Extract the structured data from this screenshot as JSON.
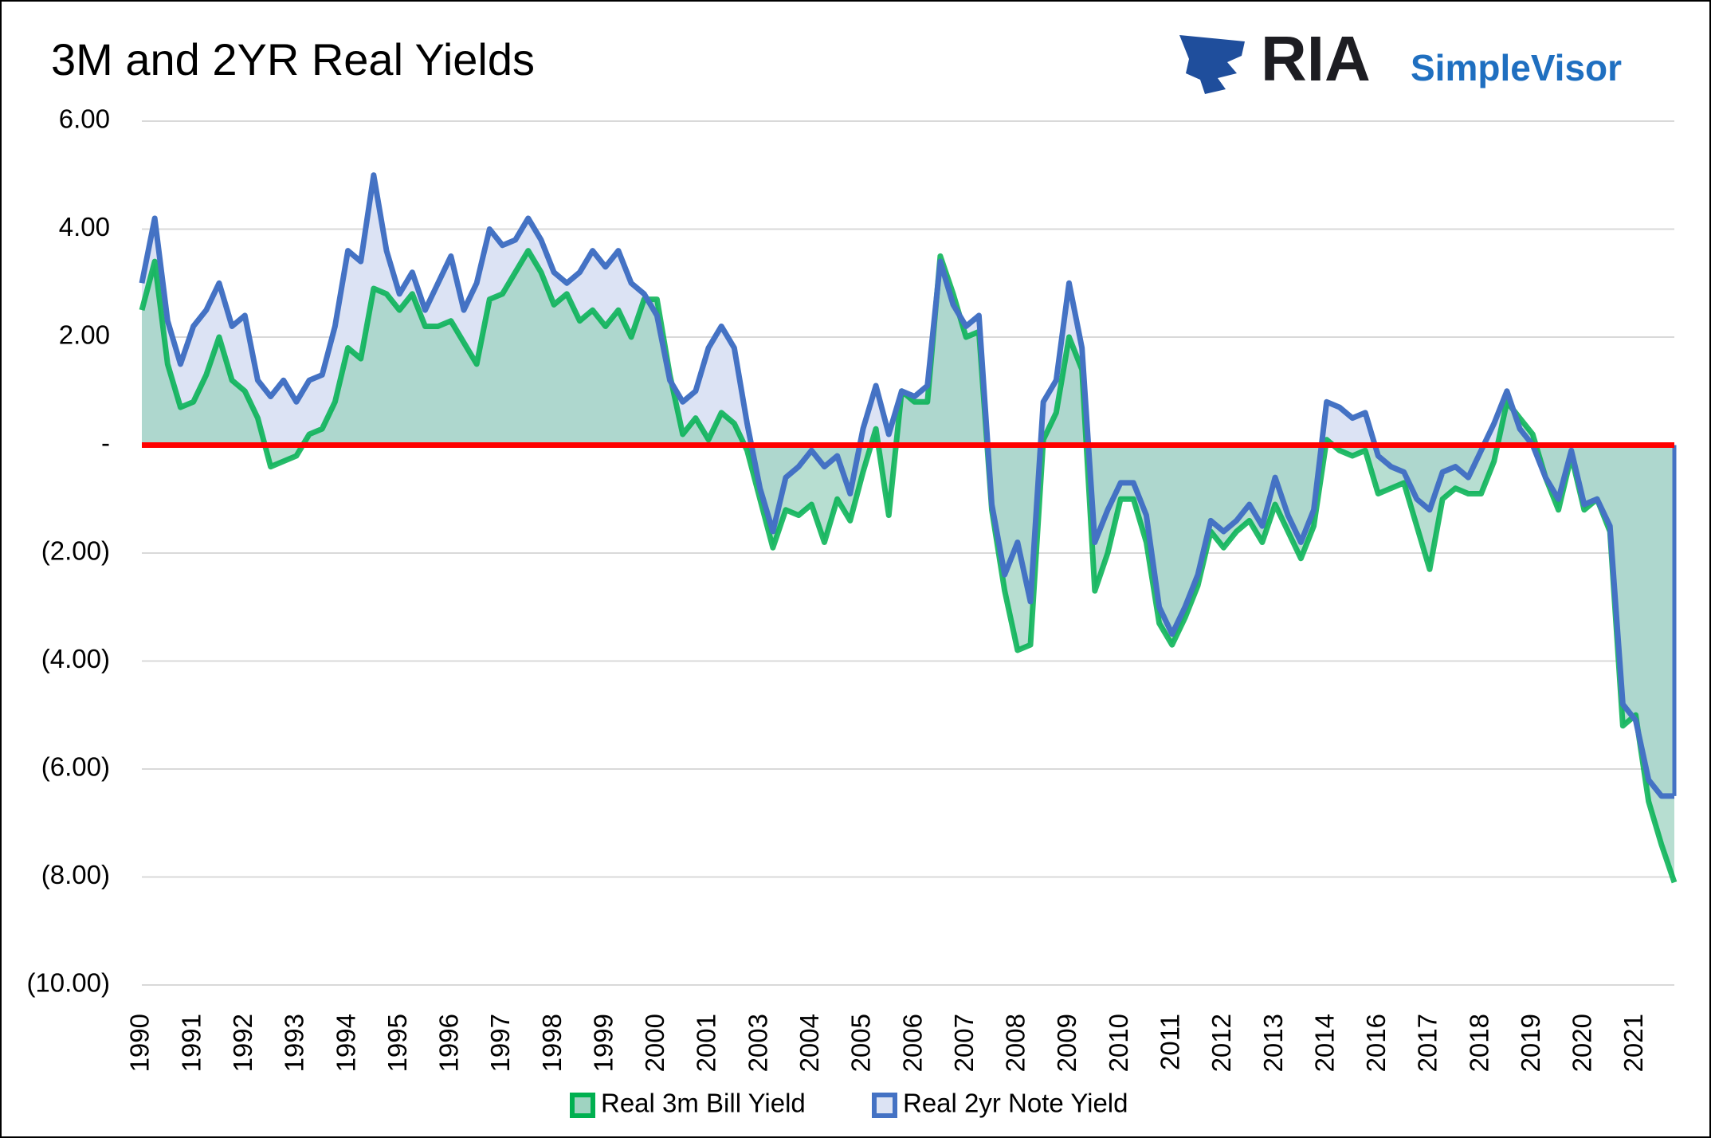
{
  "logo": {
    "brand": "RIA",
    "product": "SimpleVisor"
  },
  "chart_data": {
    "type": "area",
    "title": "3M and 2YR Real Yields",
    "categories": [
      "1990",
      null,
      null,
      null,
      "1991",
      null,
      null,
      null,
      "1992",
      null,
      null,
      null,
      "1993",
      null,
      null,
      null,
      "1994",
      null,
      null,
      null,
      "1995",
      null,
      null,
      null,
      "1996",
      null,
      null,
      null,
      "1997",
      null,
      null,
      null,
      "1998",
      null,
      null,
      null,
      "1999",
      null,
      null,
      null,
      "2000",
      null,
      null,
      null,
      "2001",
      null,
      null,
      null,
      "2003",
      null,
      null,
      null,
      "2004",
      null,
      null,
      null,
      "2005",
      null,
      null,
      null,
      "2006",
      null,
      null,
      null,
      "2007",
      null,
      null,
      null,
      "2008",
      null,
      null,
      null,
      "2009",
      null,
      null,
      null,
      "2010",
      null,
      null,
      null,
      "2011",
      null,
      null,
      null,
      "2012",
      null,
      null,
      null,
      "2013",
      null,
      null,
      null,
      "2014",
      null,
      null,
      null,
      "2016",
      null,
      null,
      null,
      "2017",
      null,
      null,
      null,
      "2018",
      null,
      null,
      null,
      "2019",
      null,
      null,
      null,
      "2020",
      null,
      null,
      null,
      "2021",
      null,
      null,
      null
    ],
    "series": [
      {
        "name": "Real 3m Bill Yield",
        "color": "#00b050",
        "fill": "#9fd3c1",
        "values": [
          2.5,
          3.4,
          1.5,
          0.7,
          0.8,
          1.3,
          2.0,
          1.2,
          1.0,
          0.5,
          -0.4,
          -0.3,
          -0.2,
          0.2,
          0.3,
          0.8,
          1.8,
          1.6,
          2.9,
          2.8,
          2.5,
          2.8,
          2.2,
          2.2,
          2.3,
          1.9,
          1.5,
          2.7,
          2.8,
          3.2,
          3.6,
          3.2,
          2.6,
          2.8,
          2.3,
          2.5,
          2.2,
          2.5,
          2.0,
          2.7,
          2.7,
          1.3,
          0.2,
          0.5,
          0.1,
          0.6,
          0.4,
          -0.1,
          -1.0,
          -1.9,
          -1.2,
          -1.3,
          -1.1,
          -1.8,
          -1.0,
          -1.4,
          -0.5,
          0.3,
          -1.3,
          1.0,
          0.8,
          0.8,
          3.5,
          2.8,
          2.0,
          2.1,
          -1.2,
          -2.7,
          -3.8,
          -3.7,
          0.1,
          0.6,
          2.0,
          1.4,
          -2.7,
          -2.0,
          -1.0,
          -1.0,
          -1.8,
          -3.3,
          -3.7,
          -3.2,
          -2.6,
          -1.6,
          -1.9,
          -1.6,
          -1.4,
          -1.8,
          -1.1,
          -1.6,
          -2.1,
          -1.5,
          0.1,
          -0.1,
          -0.2,
          -0.1,
          -0.9,
          -0.8,
          -0.7,
          -1.5,
          -2.3,
          -1.0,
          -0.8,
          -0.9,
          -0.9,
          -0.3,
          0.8,
          0.5,
          0.2,
          -0.6,
          -1.2,
          -0.2,
          -1.2,
          -1.0,
          -1.6,
          -5.2,
          -5.0,
          -6.6,
          -7.4,
          -8.1
        ]
      },
      {
        "name": "Real 2yr Note Yield",
        "color": "#4472c4",
        "fill": "#dce3f4",
        "values": [
          3.0,
          4.2,
          2.3,
          1.5,
          2.2,
          2.5,
          3.0,
          2.2,
          2.4,
          1.2,
          0.9,
          1.2,
          0.8,
          1.2,
          1.3,
          2.2,
          3.6,
          3.4,
          5.0,
          3.6,
          2.8,
          3.2,
          2.5,
          3.0,
          3.5,
          2.5,
          3.0,
          4.0,
          3.7,
          3.8,
          4.2,
          3.8,
          3.2,
          3.0,
          3.2,
          3.6,
          3.3,
          3.6,
          3.0,
          2.8,
          2.4,
          1.2,
          0.8,
          1.0,
          1.8,
          2.2,
          1.8,
          0.4,
          -0.8,
          -1.6,
          -0.6,
          -0.4,
          -0.1,
          -0.4,
          -0.2,
          -0.9,
          0.3,
          1.1,
          0.2,
          1.0,
          0.9,
          1.1,
          3.4,
          2.6,
          2.2,
          2.4,
          -1.1,
          -2.4,
          -1.8,
          -2.9,
          0.8,
          1.2,
          3.0,
          1.8,
          -1.8,
          -1.2,
          -0.7,
          -0.7,
          -1.3,
          -3.0,
          -3.5,
          -3.0,
          -2.4,
          -1.4,
          -1.6,
          -1.4,
          -1.1,
          -1.5,
          -0.6,
          -1.3,
          -1.8,
          -1.2,
          0.8,
          0.7,
          0.5,
          0.6,
          -0.2,
          -0.4,
          -0.5,
          -1.0,
          -1.2,
          -0.5,
          -0.4,
          -0.6,
          -0.1,
          0.4,
          1.0,
          0.3,
          0.0,
          -0.6,
          -1.0,
          -0.1,
          -1.1,
          -1.0,
          -1.5,
          -4.8,
          -5.1,
          -6.2,
          -6.5,
          -6.5
        ]
      }
    ],
    "ylim": [
      -10,
      6
    ],
    "yticks": [
      {
        "value": 6,
        "label": "6.00"
      },
      {
        "value": 4,
        "label": "4.00"
      },
      {
        "value": 2,
        "label": "2.00"
      },
      {
        "value": 0,
        "label": "-"
      },
      {
        "value": -2,
        "label": "(2.00)"
      },
      {
        "value": -4,
        "label": "(4.00)"
      },
      {
        "value": -6,
        "label": "(6.00)"
      },
      {
        "value": -8,
        "label": "(8.00)"
      },
      {
        "value": -10,
        "label": "(10.00)"
      }
    ],
    "grid": true,
    "reference_line": {
      "value": 0,
      "color": "#ff0000"
    },
    "legend": "bottom"
  }
}
